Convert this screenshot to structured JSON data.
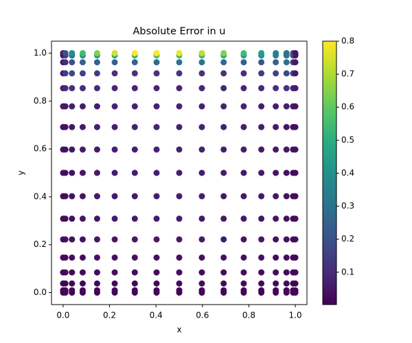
{
  "chart_data": {
    "type": "scatter",
    "title": "Absolute Error in u",
    "x_label": "x",
    "y_label": "y",
    "x": [
      0,
      0.0096,
      0.0381,
      0.0843,
      0.1464,
      0.2222,
      0.3087,
      0.4025,
      0.5,
      0.5975,
      0.6913,
      0.7778,
      0.8536,
      0.9157,
      0.9619,
      0.9904,
      1
    ],
    "y": [
      0,
      0.0096,
      0.0381,
      0.0843,
      0.1464,
      0.2222,
      0.3087,
      0.4025,
      0.5,
      0.5975,
      0.6913,
      0.7778,
      0.8536,
      0.9157,
      0.9619,
      0.9904,
      1
    ],
    "values": [
      [
        0.01,
        0.01,
        0.01,
        0.01,
        0.01,
        0.01,
        0.01,
        0.01,
        0.01,
        0.01,
        0.01,
        0.01,
        0.01,
        0.01,
        0.01,
        0.01,
        0.01
      ],
      [
        0.01,
        0.01,
        0.01,
        0.01,
        0.01,
        0.01,
        0.01,
        0.01,
        0.01,
        0.01,
        0.01,
        0.01,
        0.01,
        0.01,
        0.01,
        0.01,
        0.01
      ],
      [
        0.01,
        0.01,
        0.02,
        0.02,
        0.02,
        0.02,
        0.02,
        0.02,
        0.02,
        0.02,
        0.02,
        0.02,
        0.02,
        0.02,
        0.02,
        0.01,
        0.01
      ],
      [
        0.02,
        0.02,
        0.02,
        0.03,
        0.03,
        0.03,
        0.03,
        0.03,
        0.03,
        0.03,
        0.03,
        0.03,
        0.03,
        0.03,
        0.02,
        0.02,
        0.02
      ],
      [
        0.02,
        0.02,
        0.03,
        0.03,
        0.04,
        0.04,
        0.04,
        0.04,
        0.04,
        0.04,
        0.04,
        0.04,
        0.04,
        0.03,
        0.03,
        0.02,
        0.02
      ],
      [
        0.03,
        0.03,
        0.04,
        0.04,
        0.05,
        0.05,
        0.06,
        0.06,
        0.06,
        0.06,
        0.06,
        0.05,
        0.05,
        0.04,
        0.04,
        0.03,
        0.03
      ],
      [
        0.03,
        0.03,
        0.04,
        0.05,
        0.05,
        0.06,
        0.06,
        0.06,
        0.06,
        0.06,
        0.06,
        0.06,
        0.05,
        0.05,
        0.04,
        0.03,
        0.03
      ],
      [
        0.03,
        0.03,
        0.04,
        0.05,
        0.06,
        0.06,
        0.06,
        0.07,
        0.07,
        0.07,
        0.06,
        0.06,
        0.06,
        0.05,
        0.04,
        0.03,
        0.03
      ],
      [
        0.03,
        0.03,
        0.04,
        0.05,
        0.06,
        0.06,
        0.07,
        0.07,
        0.07,
        0.07,
        0.07,
        0.06,
        0.06,
        0.05,
        0.04,
        0.03,
        0.03
      ],
      [
        0.04,
        0.04,
        0.05,
        0.06,
        0.06,
        0.07,
        0.07,
        0.08,
        0.08,
        0.08,
        0.07,
        0.07,
        0.06,
        0.06,
        0.05,
        0.04,
        0.04
      ],
      [
        0.04,
        0.04,
        0.05,
        0.06,
        0.07,
        0.07,
        0.08,
        0.08,
        0.08,
        0.08,
        0.08,
        0.07,
        0.07,
        0.06,
        0.05,
        0.04,
        0.04
      ],
      [
        0.05,
        0.06,
        0.07,
        0.07,
        0.07,
        0.08,
        0.08,
        0.08,
        0.08,
        0.08,
        0.08,
        0.08,
        0.07,
        0.07,
        0.07,
        0.06,
        0.05
      ],
      [
        0.06,
        0.1,
        0.12,
        0.11,
        0.1,
        0.09,
        0.09,
        0.09,
        0.09,
        0.09,
        0.09,
        0.09,
        0.1,
        0.11,
        0.12,
        0.1,
        0.06
      ],
      [
        0.06,
        0.15,
        0.18,
        0.16,
        0.14,
        0.12,
        0.12,
        0.12,
        0.12,
        0.12,
        0.12,
        0.12,
        0.14,
        0.16,
        0.18,
        0.15,
        0.06
      ],
      [
        0.05,
        0.1,
        0.2,
        0.25,
        0.25,
        0.25,
        0.26,
        0.28,
        0.3,
        0.3,
        0.28,
        0.25,
        0.22,
        0.25,
        0.3,
        0.15,
        0.05
      ],
      [
        0.05,
        0.15,
        0.3,
        0.4,
        0.45,
        0.5,
        0.52,
        0.55,
        0.55,
        0.53,
        0.5,
        0.45,
        0.4,
        0.35,
        0.3,
        0.2,
        0.05
      ],
      [
        0.05,
        0.2,
        0.4,
        0.55,
        0.65,
        0.75,
        0.8,
        0.8,
        0.78,
        0.72,
        0.65,
        0.55,
        0.45,
        0.35,
        0.3,
        0.2,
        0.05
      ]
    ],
    "colormap": "viridis",
    "xlim": [
      -0.05,
      1.05
    ],
    "ylim": [
      -0.05,
      1.05
    ],
    "xticks": [
      {
        "value": 0,
        "label": "0.0"
      },
      0.2,
      0.4,
      0.6,
      0.8,
      {
        "value": 1,
        "label": "1.0"
      }
    ],
    "yticks": [
      {
        "value": 0,
        "label": "0.0"
      },
      0.2,
      0.4,
      0.6,
      0.8,
      {
        "value": 1,
        "label": "1.0"
      }
    ],
    "clim": [
      0.002,
      0.8
    ],
    "cticks": [
      0.1,
      0.2,
      0.3,
      0.4,
      0.5,
      0.6,
      0.7,
      0.8
    ]
  }
}
